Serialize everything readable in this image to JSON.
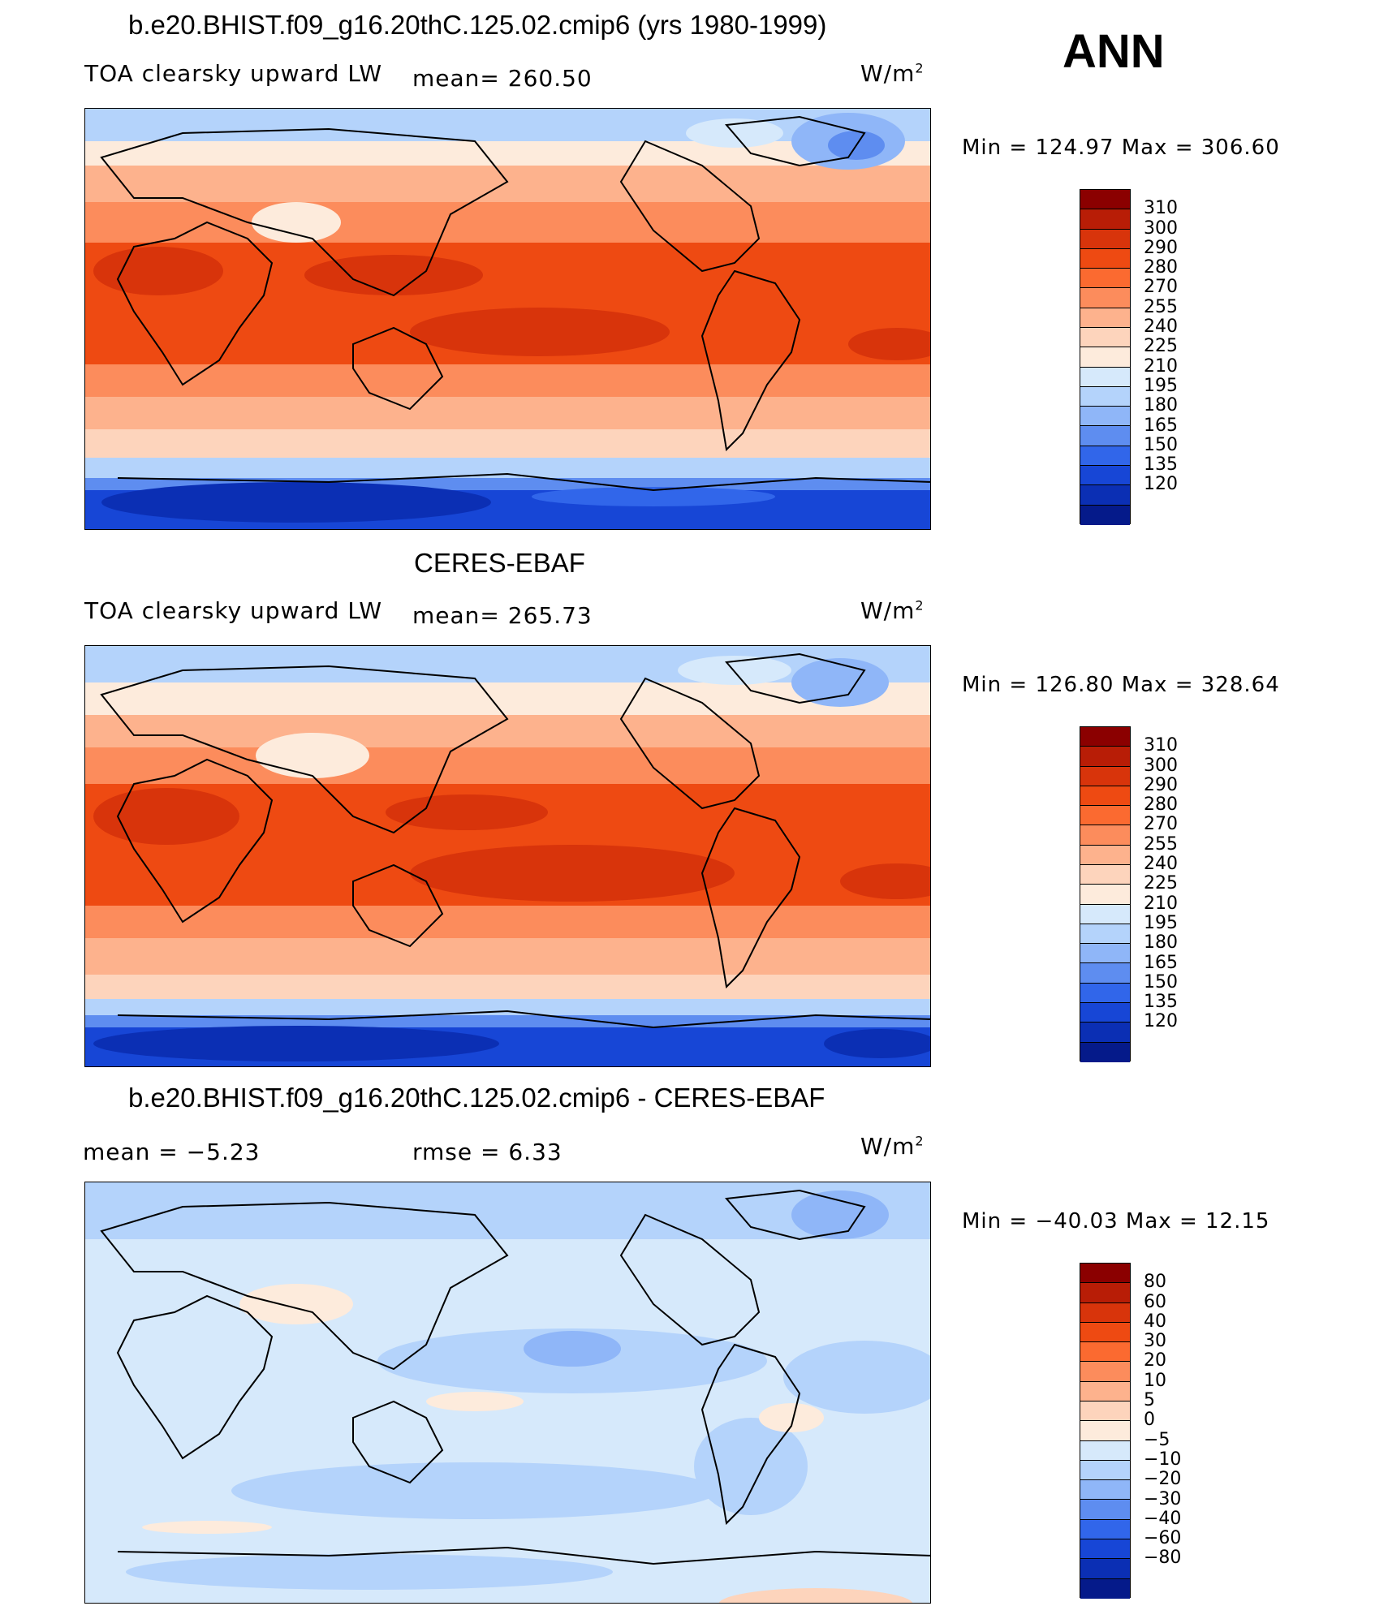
{
  "figure": {
    "season": "ANN"
  },
  "panels": [
    {
      "title": "b.e20.BHIST.f09_g16.20thC.125.02.cmip6 (yrs 1980-1999)",
      "left_label": "TOA clearsky upward LW",
      "center_label": "mean=  260.50",
      "units": "W/m",
      "units_sup": "2",
      "minmax": "Min  =  124.97  Max  =  306.60",
      "colorbar": {
        "labels": [
          "310",
          "300",
          "290",
          "280",
          "270",
          "255",
          "240",
          "225",
          "210",
          "195",
          "180",
          "165",
          "150",
          "135",
          "120"
        ],
        "colors": [
          "#8b0000",
          "#b81d06",
          "#d8340b",
          "#ee4a12",
          "#fb6a30",
          "#fc8c5c",
          "#fdb28d",
          "#fdd4bc",
          "#fdebdc",
          "#d6e9fb",
          "#b4d3fb",
          "#8fb6f8",
          "#5e8df0",
          "#3166ea",
          "#1746d6",
          "#0b2fb4",
          "#051a8a"
        ]
      },
      "map_style": "model"
    },
    {
      "title": "CERES-EBAF",
      "left_label": "TOA clearsky upward LW",
      "center_label": "mean=  265.73",
      "units": "W/m",
      "units_sup": "2",
      "minmax": "Min  =  126.80  Max  =  328.64",
      "colorbar": {
        "labels": [
          "310",
          "300",
          "290",
          "280",
          "270",
          "255",
          "240",
          "225",
          "210",
          "195",
          "180",
          "165",
          "150",
          "135",
          "120"
        ],
        "colors": [
          "#8b0000",
          "#b81d06",
          "#d8340b",
          "#ee4a12",
          "#fb6a30",
          "#fc8c5c",
          "#fdb28d",
          "#fdd4bc",
          "#fdebdc",
          "#d6e9fb",
          "#b4d3fb",
          "#8fb6f8",
          "#5e8df0",
          "#3166ea",
          "#1746d6",
          "#0b2fb4",
          "#051a8a"
        ]
      },
      "map_style": "obs"
    },
    {
      "title": "b.e20.BHIST.f09_g16.20thC.125.02.cmip6 - CERES-EBAF",
      "left_label": "mean  =    −5.23",
      "center_label": "rmse  =     6.33",
      "units": "W/m",
      "units_sup": "2",
      "minmax": "Min  =  −40.03  Max  =    12.15",
      "colorbar": {
        "labels": [
          "80",
          "60",
          "40",
          "30",
          "20",
          "10",
          "5",
          "0",
          "−5",
          "−10",
          "−20",
          "−30",
          "−40",
          "−60",
          "−80"
        ],
        "colors": [
          "#8b0000",
          "#b81d06",
          "#d8340b",
          "#ee4a12",
          "#fb6a30",
          "#fc8c5c",
          "#fdb28d",
          "#fdd4bc",
          "#fdebdc",
          "#d6e9fb",
          "#b4d3fb",
          "#8fb6f8",
          "#5e8df0",
          "#3166ea",
          "#1746d6",
          "#0b2fb4",
          "#051a8a"
        ]
      },
      "map_style": "diff"
    }
  ]
}
